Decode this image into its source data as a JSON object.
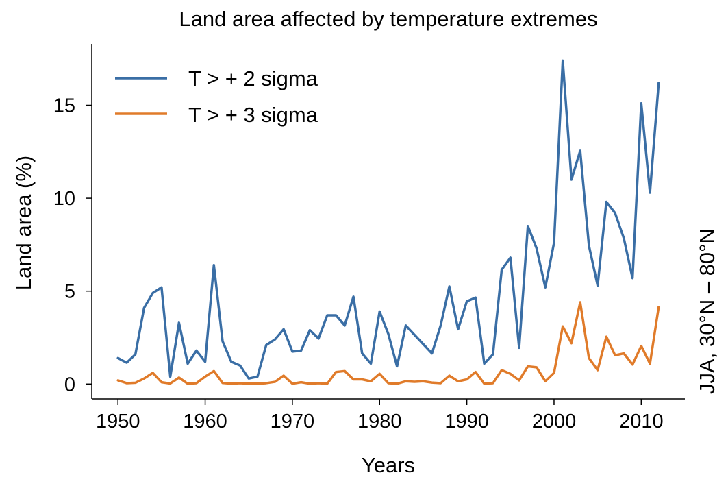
{
  "chart_data": {
    "type": "line",
    "title": "Land area affected by temperature extremes",
    "xlabel": "Years",
    "ylabel": "Land area (%)",
    "side_label": "JJA, 30°N – 80°N",
    "xlim": [
      1947,
      2015
    ],
    "ylim": [
      -0.8,
      18.3
    ],
    "xticks": [
      1950,
      1960,
      1970,
      1980,
      1990,
      2000,
      2010
    ],
    "yticks": [
      0,
      5,
      10,
      15
    ],
    "grid": false,
    "legend_position": "top-left",
    "x": [
      1950,
      1951,
      1952,
      1953,
      1954,
      1955,
      1956,
      1957,
      1958,
      1959,
      1960,
      1961,
      1962,
      1963,
      1964,
      1965,
      1966,
      1967,
      1968,
      1969,
      1970,
      1971,
      1972,
      1973,
      1974,
      1975,
      1976,
      1977,
      1978,
      1979,
      1980,
      1981,
      1982,
      1983,
      1984,
      1985,
      1986,
      1987,
      1988,
      1989,
      1990,
      1991,
      1992,
      1993,
      1994,
      1995,
      1996,
      1997,
      1998,
      1999,
      2000,
      2001,
      2002,
      2003,
      2004,
      2005,
      2006,
      2007,
      2008,
      2009,
      2010,
      2011,
      2012
    ],
    "series": [
      {
        "name": "T > + 2 sigma",
        "color": "#3a6ea5",
        "values": [
          1.4,
          1.15,
          1.6,
          4.1,
          4.9,
          5.2,
          0.4,
          3.3,
          1.1,
          1.8,
          1.2,
          6.4,
          2.3,
          1.2,
          1.0,
          0.3,
          0.4,
          2.1,
          2.4,
          2.95,
          1.75,
          1.8,
          2.9,
          2.45,
          3.7,
          3.7,
          3.15,
          4.7,
          1.65,
          1.1,
          3.9,
          2.7,
          0.95,
          3.15,
          2.65,
          2.15,
          1.65,
          3.15,
          5.25,
          2.95,
          4.45,
          4.65,
          1.1,
          1.6,
          6.15,
          6.8,
          1.95,
          8.5,
          7.3,
          5.2,
          7.6,
          17.4,
          11.0,
          12.55,
          7.45,
          5.3,
          9.8,
          9.2,
          7.85,
          5.7,
          15.1,
          10.3,
          16.2
        ]
      },
      {
        "name": "T > + 3 sigma",
        "color": "#e07b2a",
        "values": [
          0.2,
          0.05,
          0.07,
          0.3,
          0.6,
          0.1,
          0.03,
          0.35,
          0.02,
          0.05,
          0.4,
          0.7,
          0.06,
          0.02,
          0.05,
          0.02,
          0.02,
          0.05,
          0.12,
          0.45,
          0.02,
          0.1,
          0.02,
          0.05,
          0.02,
          0.65,
          0.7,
          0.25,
          0.25,
          0.15,
          0.55,
          0.05,
          0.02,
          0.15,
          0.12,
          0.15,
          0.08,
          0.05,
          0.45,
          0.15,
          0.25,
          0.65,
          0.02,
          0.05,
          0.75,
          0.55,
          0.2,
          0.95,
          0.9,
          0.15,
          0.6,
          3.1,
          2.2,
          4.4,
          1.4,
          0.75,
          2.55,
          1.55,
          1.65,
          1.05,
          2.05,
          1.1,
          4.15
        ]
      }
    ]
  }
}
